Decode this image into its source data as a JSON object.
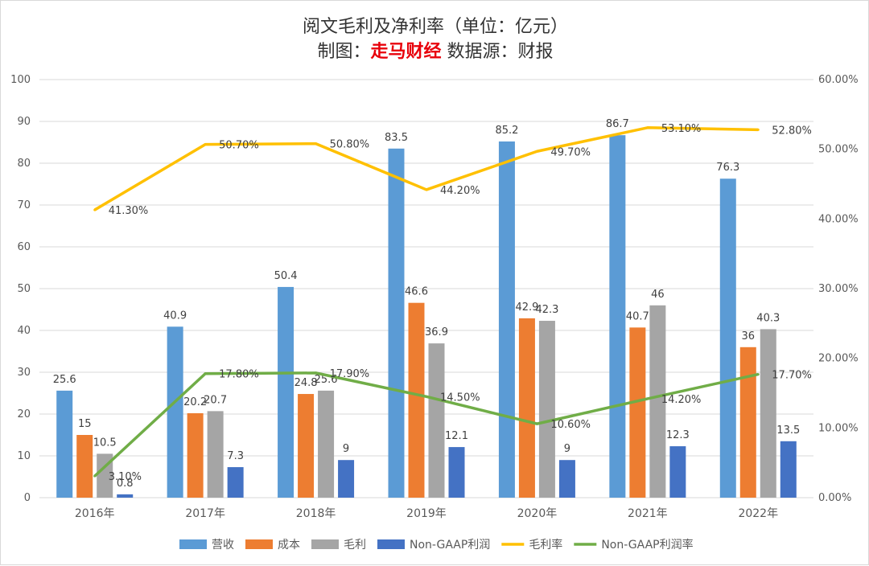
{
  "title": {
    "line1": "阅文毛利及净利率（单位：亿元）",
    "line2_prefix": "制图：",
    "line2_brand": "走马财经",
    "line2_suffix": "  数据源：财报"
  },
  "colors": {
    "营收": "#5b9bd5",
    "成本": "#ed7d31",
    "毛利": "#a5a5a5",
    "NonGAAP利润": "#4472c4",
    "毛利率": "#ffc000",
    "NonGAAP利润率": "#70ad47",
    "grid": "#d9d9d9"
  },
  "chart_data": {
    "type": "bar",
    "categories": [
      "2016年",
      "2017年",
      "2018年",
      "2019年",
      "2020年",
      "2021年",
      "2022年"
    ],
    "series": [
      {
        "name": "营收",
        "values": [
          25.6,
          40.9,
          50.4,
          83.5,
          85.2,
          86.7,
          76.3
        ]
      },
      {
        "name": "成本",
        "values": [
          15,
          20.2,
          24.8,
          46.6,
          42.9,
          40.7,
          36
        ]
      },
      {
        "name": "毛利",
        "values": [
          10.5,
          20.7,
          25.6,
          36.9,
          42.3,
          46,
          40.3
        ]
      },
      {
        "name": "Non-GAAP利润",
        "values": [
          0.8,
          7.3,
          9,
          12.1,
          9,
          12.3,
          13.5
        ]
      }
    ],
    "line_series": [
      {
        "name": "毛利率",
        "axis": "right",
        "values": [
          41.3,
          50.7,
          50.8,
          44.2,
          49.7,
          53.1,
          52.8
        ],
        "labels": [
          "41.30%",
          "50.70%",
          "50.80%",
          "44.20%",
          "49.70%",
          "53.10%",
          "52.80%"
        ]
      },
      {
        "name": "Non-GAAP利润率",
        "axis": "right",
        "values": [
          3.1,
          17.8,
          17.9,
          14.5,
          10.6,
          14.2,
          17.7
        ],
        "labels": [
          "3.10%",
          "17.80%",
          "17.90%",
          "14.50%",
          "10.60%",
          "14.20%",
          "17.70%"
        ]
      }
    ],
    "y_left": {
      "min": 0,
      "max": 100,
      "step": 10,
      "ticks": [
        "0",
        "10",
        "20",
        "30",
        "40",
        "50",
        "60",
        "70",
        "80",
        "90",
        "100"
      ]
    },
    "y_right": {
      "min": 0,
      "max": 60,
      "step": 10,
      "ticks": [
        "0.00%",
        "10.00%",
        "20.00%",
        "30.00%",
        "40.00%",
        "50.00%",
        "60.00%"
      ]
    },
    "grid": true,
    "legend": [
      "营收",
      "成本",
      "毛利",
      "Non-GAAP利润",
      "毛利率",
      "Non-GAAP利润率"
    ],
    "legend_position": "bottom"
  }
}
